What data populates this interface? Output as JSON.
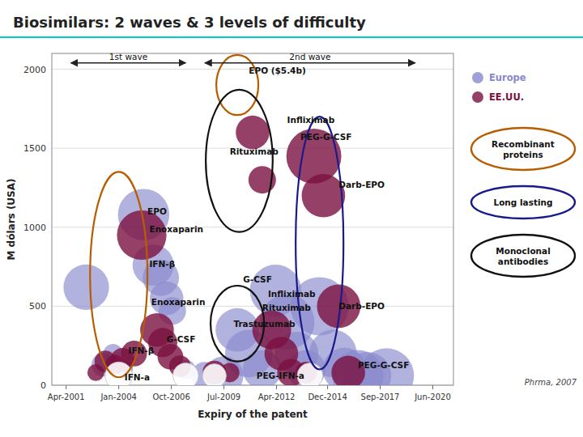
{
  "chart_data": {
    "type": "bubble",
    "title": "Biosimilars: 2 waves & 3 levels of difficulty",
    "xlabel": "Expiry of the patent",
    "ylabel": "M dólars (USA)",
    "xlim": [
      2000.5,
      2021.5
    ],
    "ylim": [
      0,
      2100
    ],
    "xticks": [
      {
        "value": 2001.25,
        "label": "Apr-2001"
      },
      {
        "value": 2004.0,
        "label": "Jan-2004"
      },
      {
        "value": 2006.75,
        "label": "Oct-2006"
      },
      {
        "value": 2009.5,
        "label": "Jul-2009"
      },
      {
        "value": 2012.25,
        "label": "Apr-2012"
      },
      {
        "value": 2014.92,
        "label": "Dec-2014"
      },
      {
        "value": 2017.67,
        "label": "Sep-2017"
      },
      {
        "value": 2020.42,
        "label": "Jun-2020"
      }
    ],
    "yticks": [
      0,
      500,
      1000,
      1500,
      2000
    ],
    "grid": "y",
    "legend": "right",
    "series": [
      {
        "name": "Europe",
        "color": "#8888cc",
        "x": [
          2002.3,
          2003.2,
          2003.7,
          2004.3,
          2005.3,
          2005.8,
          2006.2,
          2006.5,
          2006.8,
          2007.5,
          2008.5,
          2009.5,
          2010.2,
          2010.8,
          2011.5,
          2012.2,
          2012.8,
          2013.3,
          2013.8,
          2014.5,
          2015.2,
          2015.8,
          2016.5,
          2017.0,
          2018.0
        ],
        "values": [
          620,
          130,
          200,
          100,
          1080,
          760,
          680,
          550,
          470,
          100,
          60,
          60,
          350,
          200,
          100,
          600,
          400,
          200,
          100,
          500,
          200,
          100,
          60,
          60,
          60
        ],
        "sizes": [
          2200,
          600,
          400,
          300,
          2800,
          1800,
          1400,
          1200,
          800,
          400,
          800,
          1600,
          2000,
          2400,
          1600,
          2800,
          3200,
          2000,
          1600,
          3600,
          2400,
          2000,
          2800,
          2400,
          3200
        ]
      },
      {
        "name": "EE.UU.",
        "color": "#7a1040",
        "x": [
          2002.8,
          2003.3,
          2003.8,
          2004.2,
          2004.8,
          2005.2,
          2006.0,
          2006.3,
          2006.7,
          2007.2,
          2009.0,
          2009.8,
          2011.0,
          2011.5,
          2012.0,
          2012.5,
          2013.0,
          2013.8,
          2014.2,
          2014.7,
          2015.5,
          2016.0
        ],
        "values": [
          80,
          150,
          130,
          160,
          200,
          950,
          350,
          270,
          180,
          120,
          80,
          80,
          1600,
          1300,
          350,
          200,
          80,
          80,
          1450,
          1200,
          500,
          80
        ],
        "sizes": [
          300,
          500,
          400,
          600,
          700,
          2600,
          1200,
          900,
          700,
          500,
          600,
          400,
          1200,
          800,
          1600,
          1200,
          800,
          500,
          3200,
          2000,
          2000,
          1200
        ]
      },
      {
        "color": "#ffffff",
        "x": [
          2004.0,
          2007.5,
          2009.0,
          2014.0
        ],
        "values": [
          60,
          60,
          60,
          60
        ],
        "sizes": [
          800,
          700,
          600,
          700
        ]
      }
    ],
    "annotations": [
      {
        "text": "EPO",
        "x": 2005.5,
        "y": 1100
      },
      {
        "text": "Enoxaparin",
        "x": 2005.6,
        "y": 990
      },
      {
        "text": "IFN-β",
        "x": 2005.6,
        "y": 770
      },
      {
        "text": "Enoxaparin",
        "x": 2005.7,
        "y": 530
      },
      {
        "text": "G-CSF",
        "x": 2006.5,
        "y": 290
      },
      {
        "text": "IFN-β",
        "x": 2004.5,
        "y": 220
      },
      {
        "text": "IFN-a",
        "x": 2004.3,
        "y": 50
      },
      {
        "text": "EPO ($5.4b)",
        "x": 2010.8,
        "y": 1990
      },
      {
        "text": "Infliximab",
        "x": 2012.8,
        "y": 1680
      },
      {
        "text": "Rituximab",
        "x": 2009.8,
        "y": 1480
      },
      {
        "text": "PEG-G-CSF",
        "x": 2013.5,
        "y": 1570
      },
      {
        "text": "Darb-EPO",
        "x": 2015.5,
        "y": 1270
      },
      {
        "text": "G-CSF",
        "x": 2010.5,
        "y": 670
      },
      {
        "text": "Infliximab",
        "x": 2011.8,
        "y": 580
      },
      {
        "text": "Rituximab",
        "x": 2011.5,
        "y": 490
      },
      {
        "text": "Trastuzumab",
        "x": 2010.0,
        "y": 390
      },
      {
        "text": "Darb-EPO",
        "x": 2015.5,
        "y": 500
      },
      {
        "text": "PEG-IFN-a",
        "x": 2011.2,
        "y": 60
      },
      {
        "text": "PEG-G-CSF",
        "x": 2016.5,
        "y": 130
      }
    ],
    "waves": [
      {
        "text": "1st wave",
        "x1": 2001.5,
        "x2": 2007.5,
        "y": 2040
      },
      {
        "text": "2nd wave",
        "x1": 2008.5,
        "x2": 2019.5,
        "y": 2040
      }
    ],
    "groups": [
      {
        "name": "Recombinant\nproteins",
        "color": "#b85c00"
      },
      {
        "name": "Long lasting",
        "color": "#1a1a8c"
      },
      {
        "name": "Monoclonal\nantibodies",
        "color": "#111111"
      }
    ],
    "regions": [
      {
        "color": "#b85c00",
        "cx": 2004.0,
        "cy": 700,
        "width": 3.0,
        "height": 1300
      },
      {
        "color": "#b85c00",
        "cx": 2010.2,
        "cy": 1900,
        "width": 2.2,
        "height": 380
      },
      {
        "color": "#111111",
        "cx": 2010.3,
        "cy": 1420,
        "width": 3.5,
        "height": 900
      },
      {
        "color": "#111111",
        "cx": 2010.2,
        "cy": 390,
        "width": 2.8,
        "height": 480
      },
      {
        "color": "#1a1a8c",
        "cx": 2014.5,
        "cy": 900,
        "width": 2.5,
        "height": 1600
      }
    ],
    "source": "Phrma, 2007"
  }
}
